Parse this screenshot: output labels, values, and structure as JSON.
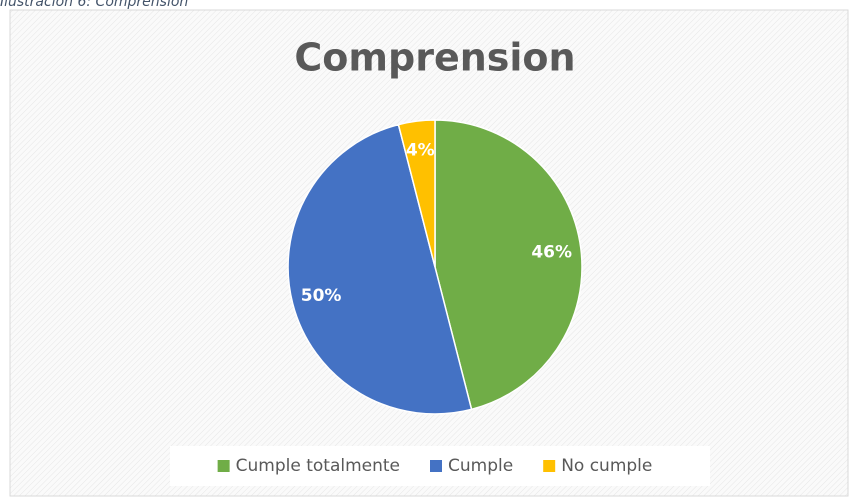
{
  "chart_data": {
    "type": "pie",
    "caption": "Ilustración 6: Comprension",
    "title": "Comprension",
    "categories": [
      "Cumple totalmente",
      "Cumple",
      "No cumple"
    ],
    "values": [
      46,
      50,
      4
    ],
    "value_labels": [
      "46%",
      "50%",
      "4%"
    ],
    "colors": [
      "#70ad47",
      "#4472c4",
      "#ffc000"
    ],
    "legend": "bottom"
  }
}
